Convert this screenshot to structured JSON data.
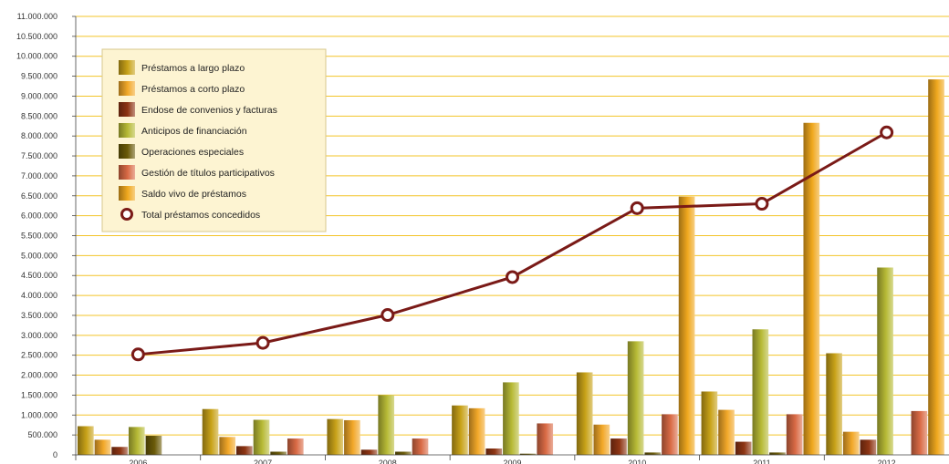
{
  "chart_data": {
    "type": "bar",
    "title": "",
    "xlabel": "",
    "ylabel": "",
    "categories": [
      "2006",
      "2007",
      "2008",
      "2009",
      "2010",
      "2011",
      "2012"
    ],
    "ylim": [
      0,
      11000000
    ],
    "yticks": [
      0,
      500000,
      1000000,
      1500000,
      2000000,
      2500000,
      3000000,
      3500000,
      4000000,
      4500000,
      5000000,
      5500000,
      6000000,
      6500000,
      7000000,
      7500000,
      8000000,
      8500000,
      9000000,
      9500000,
      10000000,
      10500000,
      11000000
    ],
    "ytick_labels": [
      "0",
      "500.000",
      "1.000.000",
      "1.500.000",
      "2.000.000",
      "2.500.000",
      "3.000.000",
      "3.500.000",
      "4.000.000",
      "4.500.000",
      "5.000.000",
      "5.500.000",
      "6.000.000",
      "6.500.000",
      "7.000.000",
      "7.500.000",
      "8.000.000",
      "8.500.000",
      "9.000.000",
      "9.500.000",
      "10.000.000",
      "10.500.000",
      "11.000.000"
    ],
    "grid": true,
    "legend_position": "top-left",
    "series": [
      {
        "name": "Préstamos a largo plazo",
        "kind": "bar",
        "color": "#c8a218",
        "values": [
          720000,
          1150000,
          900000,
          1240000,
          2070000,
          1590000,
          2550000
        ]
      },
      {
        "name": "Préstamos a corto plazo",
        "kind": "bar",
        "color": "#f2a829",
        "values": [
          380000,
          450000,
          870000,
          1170000,
          760000,
          1130000,
          580000
        ]
      },
      {
        "name": "Endose de convenios y facturas",
        "kind": "bar",
        "color": "#8e3514",
        "values": [
          200000,
          220000,
          130000,
          160000,
          410000,
          330000,
          380000
        ]
      },
      {
        "name": "Anticipos de financiación",
        "kind": "bar",
        "color": "#b7ba36",
        "values": [
          700000,
          880000,
          1500000,
          1820000,
          2850000,
          3150000,
          4700000
        ]
      },
      {
        "name": "Operaciones especiales",
        "kind": "bar",
        "color": "#6a5a08",
        "values": [
          480000,
          80000,
          80000,
          30000,
          60000,
          60000,
          0
        ]
      },
      {
        "name": "Gestión de títulos participativos",
        "kind": "bar",
        "color": "#d96a45",
        "values": [
          0,
          410000,
          410000,
          790000,
          1020000,
          1020000,
          1100000
        ]
      },
      {
        "name": "Saldo vivo de préstamos",
        "kind": "bar",
        "color": "#f0a81e",
        "values": [
          0,
          0,
          0,
          0,
          6480000,
          8330000,
          9420000
        ]
      },
      {
        "name": "Total préstamos concedidos",
        "kind": "line",
        "color": "#7a1a17",
        "values": [
          2520000,
          2810000,
          3510000,
          4460000,
          6190000,
          6300000,
          8090000
        ]
      }
    ]
  }
}
